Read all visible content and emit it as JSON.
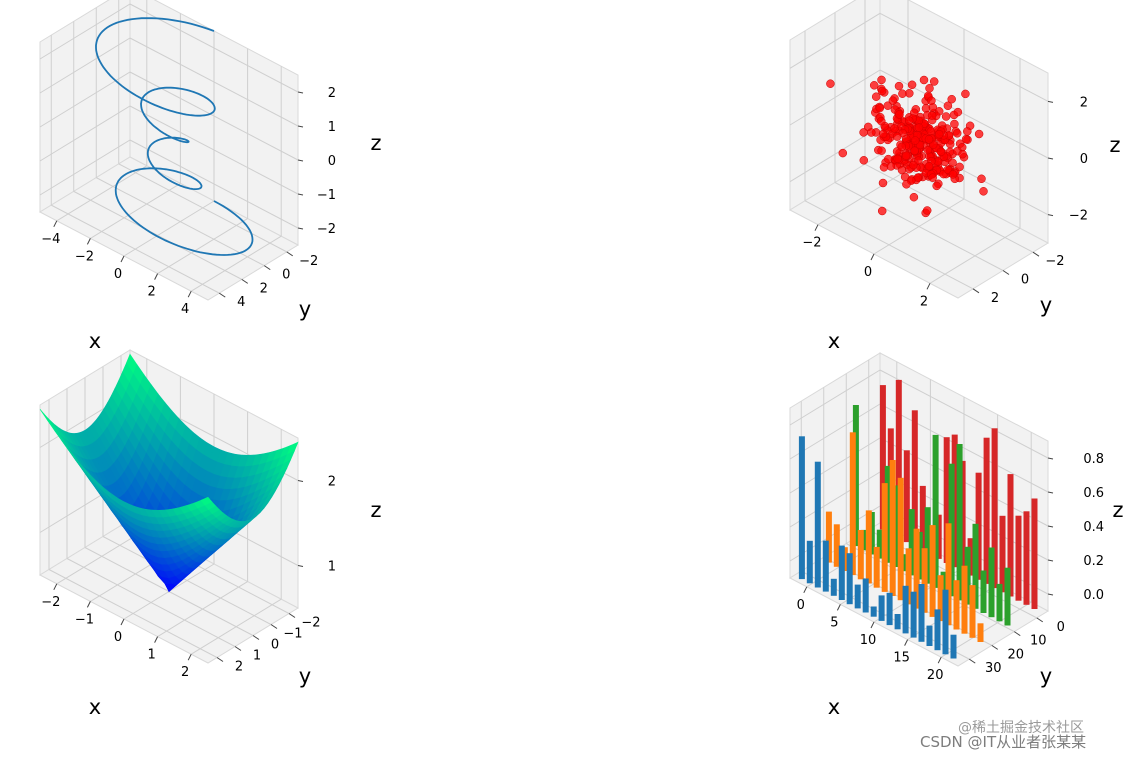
{
  "chart_data": [
    {
      "type": "line",
      "panel": "top-left",
      "xlabel": "x",
      "ylabel": "y",
      "zlabel": "z",
      "xlim": [
        -5,
        5
      ],
      "ylim": [
        -5,
        5
      ],
      "zlim": [
        -2,
        2
      ],
      "xticks": [
        "−4",
        "−2",
        "0",
        "2",
        "4"
      ],
      "yticks": [
        "−2",
        "0",
        "2",
        "4"
      ],
      "zticks": [
        "2",
        "1",
        "0",
        "−1",
        "−2"
      ],
      "series": [
        {
          "formula": "x=r·sin(θ), y=r·cos(θ), r=z²+1, θ∈[−4π,4π], z∈[−2,2]",
          "color": "#1f77b4"
        }
      ],
      "grid": true
    },
    {
      "type": "scatter",
      "panel": "top-right",
      "xlabel": "x",
      "ylabel": "y",
      "zlabel": "z",
      "xlim": [
        -4,
        4
      ],
      "ylim": [
        -4,
        4
      ],
      "zlim": [
        -4,
        4
      ],
      "xticks": [
        "−2",
        "0",
        "2"
      ],
      "yticks": [
        "−2",
        "0",
        "2"
      ],
      "zticks": [
        "2",
        "0",
        "−2"
      ],
      "series": [
        {
          "distribution": "standard normal",
          "n": 300,
          "color": "#ff0000"
        }
      ],
      "grid": true
    },
    {
      "type": "surface",
      "panel": "bottom-left",
      "xlabel": "x",
      "ylabel": "y",
      "zlabel": "z",
      "xlim": [
        -2,
        2
      ],
      "ylim": [
        -2,
        2
      ],
      "zlim": [
        0,
        2.8
      ],
      "xticks": [
        "−2",
        "−1",
        "0",
        "1",
        "2"
      ],
      "yticks": [
        "−2",
        "−1",
        "0",
        "1",
        "2"
      ],
      "zticks": [
        "2",
        "1"
      ],
      "series": [
        {
          "formula": "z = sqrt(x² + y²)",
          "colormap": "winter"
        }
      ],
      "grid": true
    },
    {
      "type": "bar",
      "panel": "bottom-right",
      "xlabel": "x",
      "ylabel": "y",
      "zlabel": "z",
      "xlim": [
        0,
        20
      ],
      "ylim": [
        0,
        30
      ],
      "zlim": [
        0,
        1
      ],
      "xticks": [
        "0",
        "5",
        "10",
        "15",
        "20"
      ],
      "yticks": [
        "0",
        "10",
        "20",
        "30"
      ],
      "zticks": [
        "0.8",
        "0.6",
        "0.4",
        "0.2",
        "0.0"
      ],
      "series": [
        {
          "y": 0,
          "color": "#1f77b4",
          "values": [
            0.84,
            0.25,
            0.74,
            0.3,
            0.1,
            0.32,
            0.3,
            0.14,
            0.2,
            0.06,
            0.15,
            0.19,
            0.09,
            0.28,
            0.27,
            0.34,
            0.12,
            0.24,
            0.38,
            0.14
          ]
        },
        {
          "y": 10,
          "color": "#ff7f0e",
          "values": [
            0.3,
            0.25,
            0.14,
            0.84,
            0.29,
            0.43,
            0.24,
            0.64,
            0.8,
            0.72,
            0.33,
            0.47,
            0.38,
            0.54,
            0.27,
            0.6,
            0.29,
            0.4,
            0.31,
            0.11
          ]
        },
        {
          "y": 20,
          "color": "#2ca02c",
          "values": [
            0.83,
            0.12,
            0.25,
            0.17,
            0.57,
            0.48,
            0.1,
            0.39,
            0.28,
            0.45,
            0.9,
            0.12,
            0.78,
            0.92,
            0.34,
            0.5,
            0.25,
            0.41,
            0.22,
            0.34
          ]
        },
        {
          "y": 30,
          "color": "#d62728",
          "values": [
            0.85,
            0.62,
            0.93,
            0.54,
            0.8,
            0.38,
            0.16,
            0.26,
            0.74,
            0.78,
            0.65,
            0.22,
            0.63,
            0.86,
            0.94,
            0.45,
            0.72,
            0.5,
            0.55,
            0.65
          ]
        }
      ],
      "grid": true
    }
  ],
  "watermark": {
    "line1": "@稀土掘金技术社区",
    "line2": "CSDN @IT从业者张某某"
  }
}
